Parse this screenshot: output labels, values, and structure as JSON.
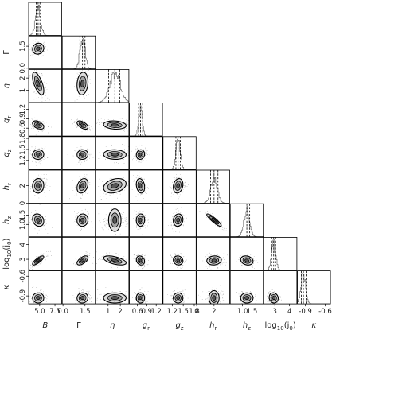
{
  "chart_data": {
    "type": "corner",
    "parameters": [
      {
        "label": "B",
        "display": "B",
        "italic": true,
        "range": [
          3.2,
          8.6
        ],
        "ticks": [
          5.0,
          7.5
        ],
        "tick_labels": [
          "5.0",
          "7.5"
        ],
        "quantiles": [
          4.45,
          4.75,
          5.05
        ],
        "spread": 0.42
      },
      {
        "label": "Γ",
        "display": "Γ",
        "italic": false,
        "range": [
          -0.05,
          2.2
        ],
        "ticks": [
          0.0,
          1.5
        ],
        "tick_labels": [
          "0.0",
          "1.5"
        ],
        "quantiles": [
          1.15,
          1.33,
          1.5
        ],
        "spread": 0.17
      },
      {
        "label": "η",
        "display": "η",
        "italic": true,
        "range": [
          0.0,
          2.7
        ],
        "ticks": [
          1,
          2
        ],
        "tick_labels": [
          "1",
          "2"
        ],
        "quantiles": [
          1.05,
          1.55,
          1.95
        ],
        "spread": 0.42
      },
      {
        "label": "g_r",
        "display": "g",
        "sub": "r",
        "italic": true,
        "range": [
          0.35,
          1.4
        ],
        "ticks": [
          0.6,
          0.9,
          1.2
        ],
        "tick_labels": [
          "0.6",
          "0.9",
          "1.2"
        ],
        "quantiles": [
          0.64,
          0.7,
          0.77
        ],
        "spread": 0.06
      },
      {
        "label": "g_z",
        "display": "g",
        "sub": "z",
        "italic": true,
        "range": [
          0.95,
          1.85
        ],
        "ticks": [
          1.2,
          1.5,
          1.8
        ],
        "tick_labels": [
          "1.2",
          "1.5",
          "1.8"
        ],
        "quantiles": [
          1.3,
          1.36,
          1.42
        ],
        "spread": 0.06
      },
      {
        "label": "h_r",
        "display": "h",
        "sub": "r",
        "italic": true,
        "range": [
          0.0,
          3.8
        ],
        "ticks": [
          0,
          2
        ],
        "tick_labels": [
          "0",
          "2"
        ],
        "quantiles": [
          1.6,
          2.0,
          2.45
        ],
        "spread": 0.38
      },
      {
        "label": "h_z",
        "display": "h",
        "sub": "z",
        "italic": true,
        "range": [
          0.35,
          2.1
        ],
        "ticks": [
          1.0,
          1.5
        ],
        "tick_labels": [
          "1.0",
          "1.5"
        ],
        "quantiles": [
          1.08,
          1.23,
          1.38
        ],
        "spread": 0.15
      },
      {
        "label": "log10(j0)",
        "display": "log",
        "sub": "10",
        "suffix": "(j",
        "sub2": "0",
        "suffix2": ")",
        "italic": false,
        "range": [
          2.25,
          4.5
        ],
        "ticks": [
          3,
          4
        ],
        "tick_labels": [
          "3",
          "4"
        ],
        "quantiles": [
          2.78,
          2.92,
          3.05
        ],
        "spread": 0.14
      },
      {
        "label": "κ",
        "display": "κ",
        "italic": true,
        "range": [
          -1.02,
          -0.52
        ],
        "ticks": [
          -0.9,
          -0.6
        ],
        "tick_labels": [
          "-0.9",
          "-0.6"
        ],
        "quantiles": [
          -0.96,
          -0.93,
          -0.89
        ],
        "spread": 0.035
      }
    ],
    "correlations": [
      [
        0,
        0,
        0,
        0,
        0,
        0,
        0,
        0,
        0
      ],
      [
        0.1,
        0,
        0,
        0,
        0,
        0,
        0,
        0,
        0
      ],
      [
        -0.65,
        0.15,
        0,
        0,
        0,
        0,
        0,
        0,
        0
      ],
      [
        -0.45,
        -0.55,
        -0.15,
        0,
        0,
        0,
        0,
        0,
        0
      ],
      [
        0.05,
        0.05,
        -0.05,
        0.1,
        0,
        0,
        0,
        0,
        0
      ],
      [
        0.05,
        0.3,
        0.3,
        -0.2,
        0.2,
        0,
        0,
        0,
        0
      ],
      [
        -0.2,
        0.05,
        0,
        0.05,
        0.1,
        -0.9,
        0,
        0,
        0
      ],
      [
        0.8,
        0.6,
        -0.55,
        -0.2,
        -0.1,
        0.1,
        -0.2,
        0,
        0
      ],
      [
        0,
        0.05,
        0,
        0,
        0,
        0,
        0,
        -0.1,
        0
      ]
    ],
    "grid": false,
    "quantile_lines": "dashed"
  }
}
